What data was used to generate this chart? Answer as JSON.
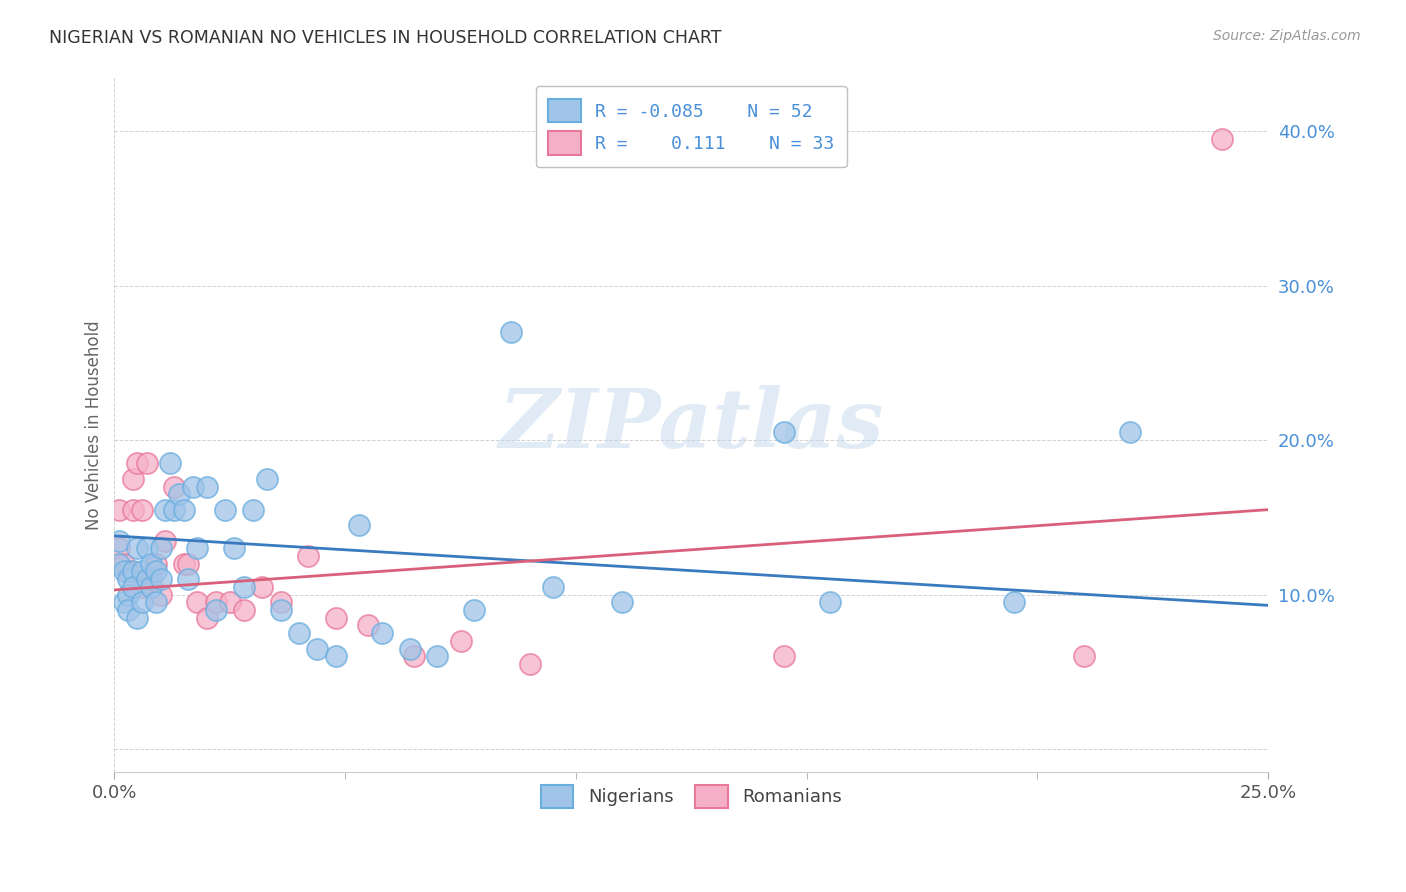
{
  "title": "NIGERIAN VS ROMANIAN NO VEHICLES IN HOUSEHOLD CORRELATION CHART",
  "source": "Source: ZipAtlas.com",
  "ylabel": "No Vehicles in Household",
  "xlim": [
    0.0,
    0.25
  ],
  "ylim": [
    -0.015,
    0.435
  ],
  "xtick_positions": [
    0.0,
    0.25
  ],
  "xtick_labels": [
    "0.0%",
    "25.0%"
  ],
  "ytick_positions": [
    0.0,
    0.1,
    0.2,
    0.3,
    0.4
  ],
  "ytick_labels": [
    "",
    "10.0%",
    "20.0%",
    "30.0%",
    "40.0%"
  ],
  "legend_R_nig": "-0.085",
  "legend_N_nig": "52",
  "legend_R_rom": "0.111",
  "legend_N_rom": "33",
  "nigerians_x": [
    0.001,
    0.001,
    0.002,
    0.002,
    0.003,
    0.003,
    0.003,
    0.004,
    0.004,
    0.005,
    0.005,
    0.006,
    0.006,
    0.007,
    0.007,
    0.008,
    0.008,
    0.009,
    0.009,
    0.01,
    0.01,
    0.011,
    0.012,
    0.013,
    0.014,
    0.015,
    0.016,
    0.017,
    0.018,
    0.02,
    0.022,
    0.024,
    0.026,
    0.028,
    0.03,
    0.033,
    0.036,
    0.04,
    0.044,
    0.048,
    0.053,
    0.058,
    0.064,
    0.07,
    0.078,
    0.086,
    0.095,
    0.11,
    0.145,
    0.155,
    0.195,
    0.22
  ],
  "nigerians_y": [
    0.12,
    0.135,
    0.115,
    0.095,
    0.11,
    0.1,
    0.09,
    0.115,
    0.105,
    0.13,
    0.085,
    0.115,
    0.095,
    0.13,
    0.11,
    0.12,
    0.105,
    0.115,
    0.095,
    0.13,
    0.11,
    0.155,
    0.185,
    0.155,
    0.165,
    0.155,
    0.11,
    0.17,
    0.13,
    0.17,
    0.09,
    0.155,
    0.13,
    0.105,
    0.155,
    0.175,
    0.09,
    0.075,
    0.065,
    0.06,
    0.145,
    0.075,
    0.065,
    0.06,
    0.09,
    0.27,
    0.105,
    0.095,
    0.205,
    0.095,
    0.095,
    0.205
  ],
  "romanians_x": [
    0.001,
    0.001,
    0.002,
    0.003,
    0.004,
    0.004,
    0.005,
    0.006,
    0.006,
    0.007,
    0.008,
    0.009,
    0.01,
    0.011,
    0.013,
    0.015,
    0.016,
    0.018,
    0.02,
    0.022,
    0.025,
    0.028,
    0.032,
    0.036,
    0.042,
    0.048,
    0.055,
    0.065,
    0.075,
    0.09,
    0.145,
    0.21,
    0.24
  ],
  "romanians_y": [
    0.13,
    0.155,
    0.12,
    0.115,
    0.175,
    0.155,
    0.185,
    0.155,
    0.105,
    0.185,
    0.11,
    0.12,
    0.1,
    0.135,
    0.17,
    0.12,
    0.12,
    0.095,
    0.085,
    0.095,
    0.095,
    0.09,
    0.105,
    0.095,
    0.125,
    0.085,
    0.08,
    0.06,
    0.07,
    0.055,
    0.06,
    0.06,
    0.395
  ],
  "nigerian_line": [
    0.0,
    0.138,
    0.25,
    0.093
  ],
  "romanian_line": [
    0.0,
    0.103,
    0.25,
    0.155
  ],
  "nigerian_line_color": "#3a7abf",
  "romanian_line_color": "#d9607a",
  "nigerian_scatter_face": "#a0c4e8",
  "nigerian_scatter_edge": "#6aaee0",
  "romanian_scatter_face": "#f5b0c8",
  "romanian_scatter_edge": "#e87898",
  "ytick_color": "#4a90d9",
  "grid_color": "#cccccc",
  "watermark_text": "ZIPatlas",
  "watermark_color": "#c5d8ec",
  "watermark_alpha": 0.5
}
